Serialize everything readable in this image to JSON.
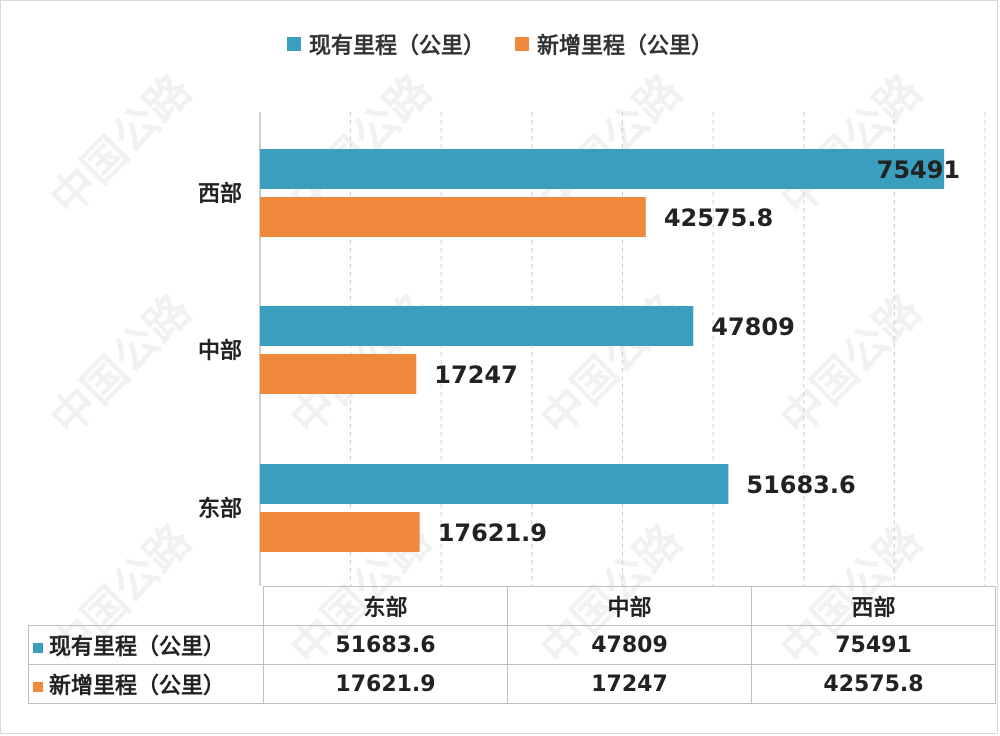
{
  "colors": {
    "existing": "#3a9fbf",
    "new": "#ef8a3c",
    "grid": "#d0d0d0",
    "axis": "#bfbfbf"
  },
  "legend": [
    "现有里程（公里）",
    "新增里程（公里）"
  ],
  "watermark": "中国公路",
  "chart_data": {
    "type": "bar",
    "orientation": "horizontal",
    "categories": [
      "东部",
      "中部",
      "西部"
    ],
    "series": [
      {
        "name": "现有里程（公里）",
        "values": [
          51683.6,
          47809,
          75491
        ],
        "labels": [
          "51683.6",
          "47809",
          "75491"
        ]
      },
      {
        "name": "新增里程（公里）",
        "values": [
          17621.9,
          17247,
          42575.8
        ],
        "labels": [
          "17621.9",
          "17247",
          "42575.8"
        ]
      }
    ],
    "xlim": [
      0,
      80000
    ],
    "grid": true,
    "legend_position": "top",
    "data_table": true
  }
}
